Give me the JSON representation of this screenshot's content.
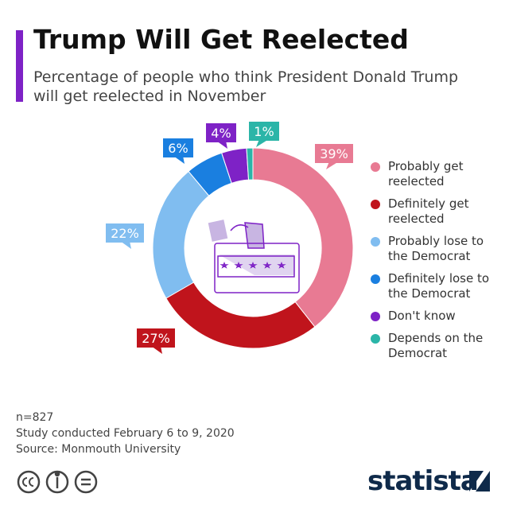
{
  "chart_data": {
    "type": "donut",
    "title": "Trump Will Get Reelected",
    "subtitle": "Percentage of people who think President Donald Trump will get reelected in November",
    "categories": [
      "Probably get reelected",
      "Definitely get reelected",
      "Probably lose to the Democrat",
      "Definitely lose to the Democrat",
      "Don't know",
      "Depends on the Democrat"
    ],
    "values": [
      39,
      27,
      22,
      6,
      4,
      1
    ],
    "value_labels": [
      "39%",
      "27%",
      "22%",
      "6%",
      "4%",
      "1%"
    ],
    "colors": [
      "#e87a93",
      "#c0141c",
      "#80bdf0",
      "#1a7fe0",
      "#7e22c6",
      "#2bb5a8"
    ],
    "legend": "right",
    "notes": [
      "n=827",
      "Study conducted February 6 to 9, 2020",
      "Source: Monmouth University"
    ],
    "brand": "statista"
  }
}
